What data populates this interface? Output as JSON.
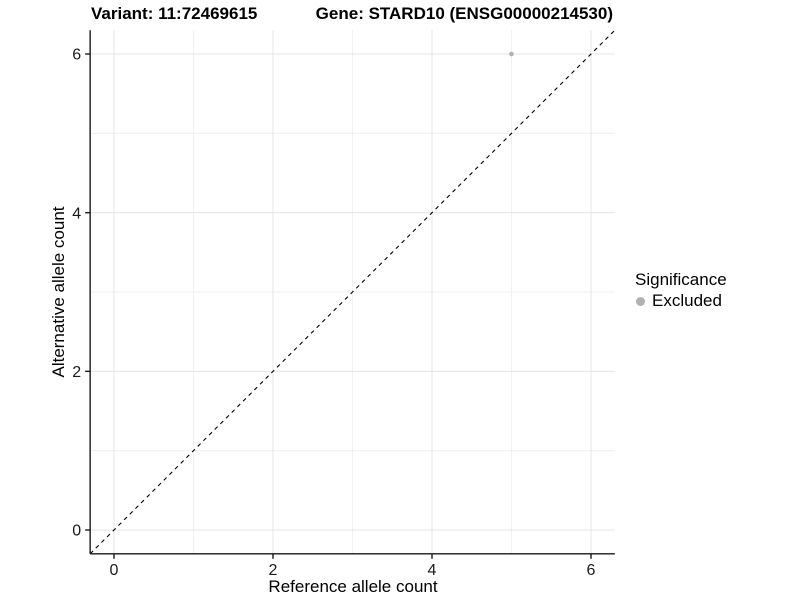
{
  "title": {
    "left": "Variant: 11:72469615",
    "right": "Gene: STARD10 (ENSG00000214530)"
  },
  "chart_data": {
    "type": "scatter",
    "xlabel": "Reference allele count",
    "ylabel": "Alternative allele count",
    "xlim": [
      -0.3,
      6.3
    ],
    "ylim": [
      -0.3,
      6.3
    ],
    "x_ticks": [
      0,
      2,
      4,
      6
    ],
    "y_ticks": [
      0,
      2,
      4,
      6
    ],
    "x_minor_ticks": [
      1,
      3,
      5
    ],
    "y_minor_ticks": [
      1,
      3,
      5
    ],
    "grid": "major and minor gridlines, light gray on white",
    "identity_line": {
      "style": "dashed",
      "color": "#000000",
      "from": [
        -0.3,
        -0.3
      ],
      "to": [
        6.3,
        6.3
      ]
    },
    "series": [
      {
        "name": "Excluded",
        "color": "#b1b1b1",
        "points": [
          {
            "x": 5,
            "y": 6
          }
        ]
      }
    ],
    "legend": {
      "title": "Significance",
      "position": "right",
      "entries": [
        {
          "label": "Excluded",
          "color": "#b1b1b1"
        }
      ]
    },
    "colors": {
      "axis_line": "#1a1a1a",
      "grid_major": "#e4e4e4",
      "grid_minor": "#f0f0f0",
      "tick_label": "#1a1a1a"
    }
  }
}
